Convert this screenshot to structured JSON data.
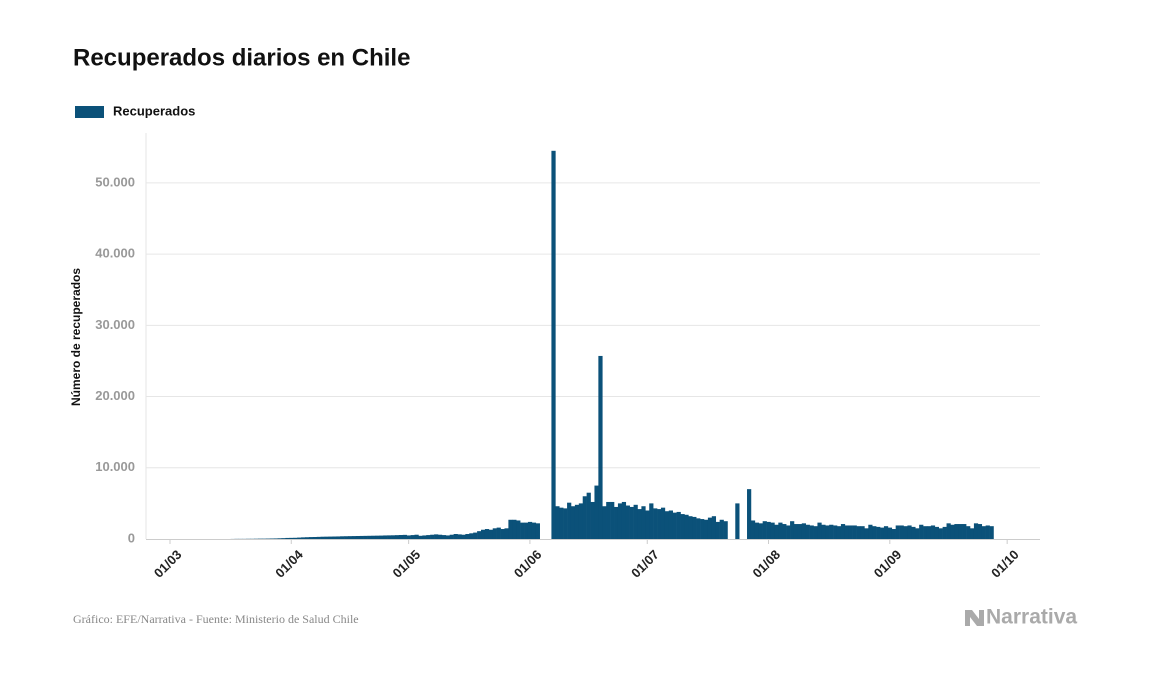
{
  "chart_data": {
    "type": "bar",
    "title": "Recuperados diarios en Chile",
    "y_label": "Número de recuperados",
    "source": "Gráfico: EFE/Narrativa - Fuente: Ministerio de Salud Chile",
    "logo": "Narrativa",
    "legend": "top-left",
    "grid": true,
    "ylim": [
      0,
      57000
    ],
    "yticks": [
      0,
      {
        "value": 10000,
        "label": "10.000"
      },
      {
        "value": 20000,
        "label": "20.000"
      },
      {
        "value": 30000,
        "label": "30.000"
      },
      {
        "value": 40000,
        "label": "40.000"
      },
      {
        "value": 50000,
        "label": "50.000"
      }
    ],
    "xticks": [
      "01/03",
      "01/04",
      "01/05",
      "01/06",
      "01/07",
      "01/08",
      "01/09",
      "01/10"
    ],
    "x": [
      "03/03",
      "04/03",
      "05/03",
      "06/03",
      "07/03",
      "08/03",
      "09/03",
      "10/03",
      "11/03",
      "12/03",
      "13/03",
      "14/03",
      "15/03",
      "16/03",
      "17/03",
      "18/03",
      "19/03",
      "20/03",
      "21/03",
      "22/03",
      "23/03",
      "24/03",
      "25/03",
      "26/03",
      "27/03",
      "28/03",
      "29/03",
      "30/03",
      "31/03",
      "01/04",
      "02/04",
      "03/04",
      "04/04",
      "05/04",
      "06/04",
      "07/04",
      "08/04",
      "09/04",
      "10/04",
      "11/04",
      "12/04",
      "13/04",
      "14/04",
      "15/04",
      "16/04",
      "17/04",
      "18/04",
      "19/04",
      "20/04",
      "21/04",
      "22/04",
      "23/04",
      "24/04",
      "25/04",
      "26/04",
      "27/04",
      "28/04",
      "29/04",
      "30/04",
      "01/05",
      "02/05",
      "03/05",
      "04/05",
      "05/05",
      "06/05",
      "07/05",
      "08/05",
      "09/05",
      "10/05",
      "11/05",
      "12/05",
      "13/05",
      "14/05",
      "15/05",
      "16/05",
      "17/05",
      "18/05",
      "19/05",
      "20/05",
      "21/05",
      "22/05",
      "23/05",
      "24/05",
      "25/05",
      "26/05",
      "27/05",
      "28/05",
      "29/05",
      "30/05",
      "31/05",
      "01/06",
      "02/06",
      "03/06",
      "04/06",
      "05/06",
      "06/06",
      "07/06",
      "08/06",
      "09/06",
      "10/06",
      "11/06",
      "12/06",
      "13/06",
      "14/06",
      "15/06",
      "16/06",
      "17/06",
      "18/06",
      "19/06",
      "20/06",
      "21/06",
      "22/06",
      "23/06",
      "24/06",
      "25/06",
      "26/06",
      "27/06",
      "28/06",
      "29/06",
      "30/06",
      "01/07",
      "02/07",
      "03/07",
      "04/07",
      "05/07",
      "06/07",
      "07/07",
      "08/07",
      "09/07",
      "10/07",
      "11/07",
      "12/07",
      "13/07",
      "14/07",
      "15/07",
      "16/07",
      "17/07",
      "18/07",
      "19/07",
      "20/07",
      "21/07",
      "22/07",
      "23/07",
      "24/07",
      "25/07",
      "26/07",
      "27/07",
      "28/07",
      "29/07",
      "30/07",
      "31/07",
      "01/08",
      "02/08",
      "03/08",
      "04/08",
      "05/08",
      "06/08",
      "07/08",
      "08/08",
      "09/08",
      "10/08",
      "11/08",
      "12/08",
      "13/08",
      "14/08",
      "15/08",
      "16/08",
      "17/08",
      "18/08",
      "19/08",
      "20/08",
      "21/08",
      "22/08",
      "23/08",
      "24/08",
      "25/08",
      "26/08",
      "27/08",
      "28/08",
      "29/08",
      "30/08",
      "31/08",
      "01/09",
      "02/09",
      "03/09",
      "04/09",
      "05/09",
      "06/09",
      "07/09",
      "08/09",
      "09/09",
      "10/09",
      "11/09",
      "12/09",
      "13/09",
      "14/09",
      "15/09",
      "16/09",
      "17/09",
      "18/09",
      "19/09",
      "20/09",
      "21/09",
      "22/09",
      "23/09",
      "24/09",
      "25/09",
      "26/09",
      "27/09"
    ],
    "series": [
      {
        "name": "Recuperados",
        "color": "#0b5179",
        "values": [
          0,
          0,
          0,
          0,
          0,
          0,
          0,
          0,
          0,
          0,
          0,
          0,
          0,
          0,
          10,
          20,
          20,
          20,
          30,
          30,
          40,
          50,
          50,
          60,
          70,
          80,
          100,
          120,
          150,
          160,
          170,
          200,
          230,
          250,
          270,
          280,
          300,
          320,
          330,
          340,
          350,
          360,
          380,
          390,
          400,
          410,
          420,
          430,
          440,
          450,
          460,
          470,
          480,
          500,
          510,
          520,
          540,
          560,
          580,
          500,
          550,
          600,
          450,
          500,
          550,
          600,
          650,
          600,
          550,
          500,
          600,
          700,
          650,
          600,
          700,
          800,
          900,
          1100,
          1300,
          1400,
          1300,
          1500,
          1600,
          1400,
          1500,
          2700,
          2700,
          2600,
          2300,
          2300,
          2400,
          2300,
          2200,
          null,
          null,
          null,
          54500,
          4600,
          4400,
          4300,
          5100,
          4600,
          4800,
          5000,
          6000,
          6500,
          5200,
          7500,
          25700,
          4600,
          5200,
          5200,
          4500,
          5000,
          5200,
          4700,
          4500,
          4800,
          4200,
          4600,
          4000,
          5000,
          4300,
          4200,
          4400,
          3900,
          4000,
          3700,
          3800,
          3500,
          3400,
          3200,
          3100,
          2900,
          2800,
          2700,
          3000,
          3200,
          2400,
          2700,
          2500,
          null,
          null,
          5000,
          null,
          null,
          7000,
          2600,
          2300,
          2200,
          2500,
          2400,
          2300,
          2000,
          2300,
          2100,
          1900,
          2500,
          2100,
          2100,
          2200,
          2000,
          1900,
          1800,
          2300,
          2000,
          1900,
          2000,
          1900,
          1800,
          2100,
          1900,
          1900,
          1900,
          1800,
          1800,
          1500,
          2000,
          1800,
          1700,
          1600,
          1800,
          1600,
          1400,
          1900,
          1900,
          1800,
          1900,
          1700,
          1500,
          2000,
          1800,
          1800,
          1900,
          1700,
          1500,
          1700,
          2200,
          2000,
          2100,
          2100,
          2100,
          1800,
          1500,
          2200,
          2100,
          1800,
          1900,
          1800
        ]
      }
    ]
  }
}
